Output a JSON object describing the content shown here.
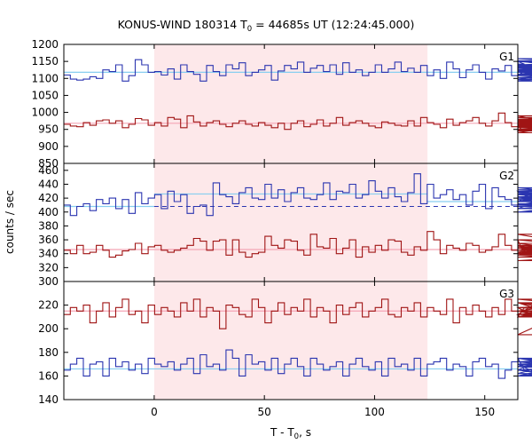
{
  "chart_data": {
    "type": "line",
    "title": "KONUS-WIND 180314 T",
    "title_sub": "0",
    "title_rest": " = 44685s UT (12:24:45.000)",
    "xlabel": "T - T",
    "xlabel_sub": "0",
    "xlabel_rest": ", s",
    "ylabel": "counts / sec",
    "xlim": [
      -41,
      165
    ],
    "xticks": [
      "0",
      "50",
      "100",
      "150"
    ],
    "xtick_values": [
      0,
      50,
      100,
      150
    ],
    "highlight": {
      "x_start": 0,
      "x_end": 124,
      "color": "#fde8ea"
    },
    "bin_width": 2.944,
    "x_start": -41,
    "panels": [
      {
        "name": "G1",
        "ylim": [
          850,
          1200
        ],
        "yticks": [
          "850",
          "900",
          "950",
          "1000",
          "1050",
          "1100",
          "1150",
          "1200"
        ],
        "ytick_values": [
          850,
          900,
          950,
          1000,
          1050,
          1100,
          1150,
          1200
        ],
        "series": [
          {
            "color": "#2b35b0",
            "fit": 1118,
            "fit_color": "#87cef0",
            "values": [
              1110,
              1098,
              1095,
              1098,
              1105,
              1100,
              1125,
              1120,
              1140,
              1092,
              1108,
              1155,
              1140,
              1118,
              1120,
              1110,
              1128,
              1098,
              1140,
              1120,
              1112,
              1092,
              1138,
              1120,
              1108,
              1140,
              1128,
              1146,
              1108,
              1118,
              1125,
              1138,
              1095,
              1122,
              1138,
              1128,
              1148,
              1118,
              1130,
              1138,
              1120,
              1140,
              1112,
              1146,
              1118,
              1125,
              1108,
              1118,
              1140,
              1118,
              1128,
              1148,
              1120,
              1130,
              1118,
              1138,
              1108,
              1125,
              1100,
              1148,
              1128,
              1102,
              1125,
              1140,
              1118,
              1098,
              1128,
              1122,
              1138,
              1108,
              1150,
              1142,
              1125,
              1110,
              1152,
              1138,
              1120,
              1098,
              1118,
              1140,
              1108,
              1120,
              1132,
              1140,
              1150,
              1126,
              1125,
              1092,
              1122,
              1140,
              1102,
              1135,
              1120,
              1140,
              1112,
              1158,
              1130,
              1096,
              1138,
              1118,
              1150,
              1108,
              1126,
              1130,
              1112,
              1122,
              1150,
              1112,
              1138,
              1120
            ]
          },
          {
            "color": "#a01414",
            "fit": 968,
            "fit_color": "#f4a5b5",
            "values": [
              965,
              960,
              958,
              970,
              962,
              975,
              978,
              968,
              975,
              955,
              965,
              982,
              978,
              962,
              970,
              960,
              985,
              980,
              955,
              990,
              972,
              960,
              970,
              975,
              965,
              958,
              968,
              975,
              965,
              960,
              970,
              962,
              955,
              968,
              950,
              968,
              975,
              958,
              965,
              978,
              960,
              968,
              985,
              962,
              970,
              975,
              968,
              960,
              955,
              972,
              968,
              962,
              960,
              975,
              960,
              985,
              970,
              965,
              955,
              980,
              962,
              970,
              975,
              985,
              968,
              960,
              975,
              998,
              970,
              958,
              945,
              965,
              960,
              975,
              940,
              955,
              990,
              962,
              958,
              945,
              975,
              950,
              965,
              972,
              960,
              945,
              975,
              960,
              980,
              985,
              968,
              948,
              972,
              962,
              975,
              960,
              965,
              978,
              945,
              968,
              970,
              985,
              975,
              960,
              950,
              985,
              972,
              968,
              945,
              962
            ]
          }
        ]
      },
      {
        "name": "G2",
        "ylim": [
          300,
          470
        ],
        "yticks": [
          "300",
          "320",
          "340",
          "360",
          "380",
          "400",
          "420",
          "440",
          "460"
        ],
        "ytick_values": [
          300,
          320,
          340,
          360,
          380,
          400,
          420,
          440,
          460
        ],
        "series": [
          {
            "color": "#2b35b0",
            "fit": 426,
            "fit_color": "#87cef0",
            "pre_level": 408,
            "post_level": 415,
            "dashed_level": 408,
            "values": [
              410,
              395,
              408,
              412,
              402,
              418,
              412,
              420,
              405,
              418,
              398,
              428,
              412,
              420,
              425,
              405,
              430,
              415,
              425,
              398,
              408,
              410,
              395,
              442,
              425,
              422,
              412,
              428,
              435,
              420,
              418,
              440,
              420,
              432,
              415,
              428,
              435,
              420,
              418,
              425,
              442,
              418,
              430,
              428,
              440,
              420,
              425,
              445,
              430,
              420,
              435,
              422,
              415,
              428,
              455,
              412,
              440,
              420,
              425,
              432,
              418,
              425,
              410,
              430,
              440,
              405,
              435,
              422,
              418,
              410,
              425,
              430,
              418,
              415,
              430,
              405,
              425,
              430,
              428,
              418,
              410,
              425,
              415,
              428,
              420,
              410,
              435,
              420,
              430,
              408,
              418,
              405,
              415,
              420,
              422,
              412,
              410,
              418,
              405,
              425,
              410,
              400,
              432,
              420,
              415,
              410,
              400,
              418,
              415,
              410
            ]
          },
          {
            "color": "#a01414",
            "fit": 346,
            "fit_color": "#f4a5b5",
            "values": [
              345,
              340,
              352,
              340,
              342,
              352,
              345,
              335,
              338,
              344,
              346,
              355,
              340,
              350,
              352,
              345,
              342,
              345,
              348,
              352,
              362,
              358,
              345,
              358,
              360,
              338,
              360,
              342,
              335,
              340,
              342,
              365,
              352,
              348,
              360,
              358,
              345,
              338,
              368,
              350,
              348,
              362,
              340,
              348,
              360,
              335,
              350,
              342,
              352,
              345,
              360,
              358,
              342,
              338,
              350,
              345,
              372,
              360,
              340,
              352,
              348,
              345,
              355,
              352,
              342,
              345,
              350,
              368,
              352,
              345,
              360,
              338,
              342,
              348,
              345,
              352,
              340,
              368,
              355,
              345,
              342,
              350,
              345,
              360,
              348,
              342,
              338,
              352,
              345,
              360,
              342,
              335,
              350,
              345,
              340,
              352,
              348,
              330,
              345,
              340,
              352,
              345,
              338,
              350,
              342,
              348,
              345,
              352,
              340,
              345
            ]
          }
        ]
      },
      {
        "name": "G3",
        "ylim": [
          140,
          240
        ],
        "yticks": [
          "140",
          "160",
          "180",
          "200",
          "220"
        ],
        "ytick_values": [
          140,
          160,
          180,
          200,
          220
        ],
        "series": [
          {
            "color": "#2b35b0",
            "fit": 166,
            "fit_color": "#87cef0",
            "values": [
              165,
              170,
              175,
              160,
              170,
              172,
              160,
              175,
              168,
              172,
              165,
              170,
              162,
              175,
              170,
              168,
              172,
              165,
              170,
              175,
              162,
              178,
              168,
              170,
              165,
              182,
              175,
              160,
              178,
              170,
              172,
              165,
              175,
              162,
              170,
              175,
              168,
              160,
              175,
              170,
              165,
              168,
              172,
              160,
              170,
              175,
              168,
              165,
              172,
              160,
              175,
              168,
              170,
              165,
              175,
              160,
              170,
              172,
              175,
              165,
              170,
              168,
              160,
              172,
              175,
              168,
              170,
              158,
              165,
              172,
              175,
              165,
              170,
              162,
              168,
              175,
              170,
              165,
              160,
              172,
              175,
              168,
              165,
              170,
              172,
              175,
              160,
              168,
              170,
              165,
              172,
              160,
              175,
              170,
              168,
              165,
              172,
              170,
              160,
              168,
              175,
              170,
              165,
              172,
              168,
              175,
              165,
              170,
              160,
              168
            ]
          },
          {
            "color": "#a01414",
            "fit": 215,
            "fit_color": "#f4a5b5",
            "values": [
              212,
              218,
              215,
              220,
              205,
              215,
              222,
              210,
              218,
              225,
              212,
              215,
              205,
              220,
              212,
              218,
              215,
              210,
              222,
              215,
              225,
              210,
              218,
              215,
              200,
              220,
              218,
              212,
              210,
              225,
              218,
              205,
              215,
              222,
              212,
              218,
              215,
              225,
              210,
              218,
              215,
              205,
              220,
              212,
              218,
              222,
              210,
              215,
              218,
              225,
              212,
              210,
              218,
              215,
              222,
              210,
              218,
              215,
              212,
              225,
              205,
              218,
              212,
              220,
              215,
              210,
              218,
              212,
              225,
              215,
              210,
              218,
              212,
              222,
              215,
              210,
              218,
              195,
              215,
              222,
              212,
              218,
              215,
              210,
              222,
              215,
              218,
              212,
              225,
              215,
              210,
              218,
              222,
              215,
              212,
              218,
              210,
              222,
              215,
              218,
              212,
              225,
              210,
              218,
              215,
              212,
              222,
              215,
              210,
              218
            ]
          }
        ]
      }
    ]
  }
}
